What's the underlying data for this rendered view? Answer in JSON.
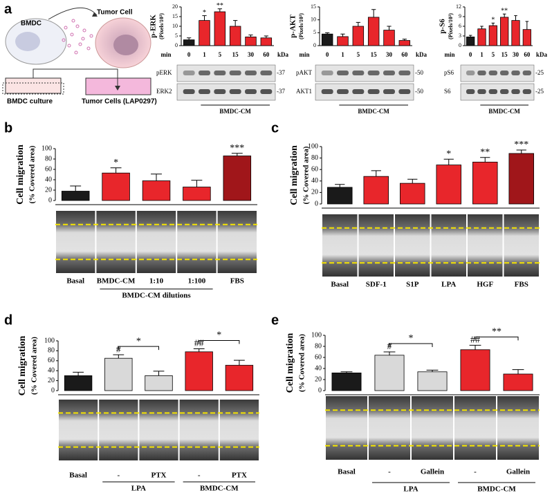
{
  "panel_labels": [
    "a",
    "b",
    "c",
    "d",
    "e"
  ],
  "diagram": {
    "bmdc": "BMDC",
    "tumor_cell": "Tumor Cell",
    "bmdc_culture": "BMDC culture",
    "tumor_cells": "Tumor Cells (LAP0297)"
  },
  "chart_data": [
    {
      "type": "bar",
      "ylabel": [
        "p-ERK",
        "(Pixels/10³)"
      ],
      "xlabel": "min",
      "unit_label": "kDa",
      "categories": [
        "0",
        "1",
        "5",
        "15",
        "30",
        "60"
      ],
      "values": [
        3,
        13,
        17.5,
        10,
        4.5,
        4
      ],
      "errors": [
        1,
        2.5,
        1.5,
        3,
        1,
        1
      ],
      "colors": [
        "#1a1a1a",
        "#e8262b",
        "#e8262b",
        "#e8262b",
        "#e8262b",
        "#e8262b"
      ],
      "value_annotations": [
        null,
        "*",
        "**",
        null,
        null,
        null
      ],
      "ylim": [
        0,
        20
      ],
      "yticks": [
        0,
        5,
        10,
        15,
        20
      ],
      "blots": [
        {
          "label": "pERK",
          "kda": "-37"
        },
        {
          "label": "ERK2",
          "kda": "-37"
        }
      ],
      "groups": [
        "BMDC-CM"
      ]
    },
    {
      "type": "bar",
      "ylabel": [
        "p-AKT",
        "(Pixels/10³)"
      ],
      "xlabel": "min",
      "unit_label": "kDa",
      "categories": [
        "0",
        "1",
        "5",
        "15",
        "30",
        "60"
      ],
      "values": [
        4.5,
        3.5,
        7.5,
        11,
        6,
        2
      ],
      "errors": [
        0.5,
        1,
        1.5,
        3,
        1.5,
        0.5
      ],
      "colors": [
        "#1a1a1a",
        "#e8262b",
        "#e8262b",
        "#e8262b",
        "#e8262b",
        "#e8262b"
      ],
      "value_annotations": [
        null,
        null,
        null,
        null,
        null,
        null
      ],
      "ylim": [
        0,
        15
      ],
      "yticks": [
        0,
        5,
        10,
        15
      ],
      "blots": [
        {
          "label": "pAKT",
          "kda": "-50"
        },
        {
          "label": "AKT1",
          "kda": "-50"
        }
      ],
      "groups": [
        "BMDC-CM"
      ]
    },
    {
      "type": "bar",
      "ylabel": [
        "p-S6",
        "(Pixels/10³)"
      ],
      "xlabel": "min",
      "unit_label": "kDa",
      "categories": [
        "0",
        "1",
        "5",
        "15",
        "30",
        "60"
      ],
      "values": [
        2.7,
        5.2,
        6.2,
        8.8,
        7.8,
        5
      ],
      "errors": [
        0.5,
        0.8,
        0.8,
        1,
        1.5,
        2.5
      ],
      "colors": [
        "#1a1a1a",
        "#e8262b",
        "#e8262b",
        "#e8262b",
        "#e8262b",
        "#e8262b"
      ],
      "value_annotations": [
        null,
        null,
        "*",
        "**",
        null,
        null
      ],
      "ylim": [
        0,
        12
      ],
      "yticks": [
        0,
        3,
        6,
        9,
        12
      ],
      "blots": [
        {
          "label": "pS6",
          "kda": "-25"
        },
        {
          "label": "S6",
          "kda": "-25"
        }
      ],
      "groups": [
        "BMDC-CM"
      ]
    },
    {
      "type": "bar",
      "ylabel": [
        "Cell migration",
        "(% Covered area)"
      ],
      "categories": [
        "Basal",
        "BMDC-CM",
        "1:10",
        "1:100",
        "FBS"
      ],
      "values": [
        18,
        53,
        38,
        26,
        86
      ],
      "errors": [
        10,
        10,
        13,
        13,
        5
      ],
      "colors": [
        "#1a1a1a",
        "#e8262b",
        "#e8262b",
        "#e8262b",
        "#a0161a"
      ],
      "value_annotations": [
        null,
        "*",
        null,
        null,
        "***"
      ],
      "ylim": [
        0,
        100
      ],
      "yticks": [
        0,
        20,
        40,
        60,
        80,
        100
      ],
      "groups": [
        "BMDC-CM dilutions"
      ]
    },
    {
      "type": "bar",
      "ylabel": [
        "Cell migration",
        "(% Covered area)"
      ],
      "categories": [
        "Basal",
        "SDF-1",
        "S1P",
        "LPA",
        "HGF",
        "FBS"
      ],
      "values": [
        29,
        48,
        36,
        68,
        73,
        88
      ],
      "errors": [
        5,
        10,
        7,
        10,
        8,
        6
      ],
      "colors": [
        "#1a1a1a",
        "#e8262b",
        "#e8262b",
        "#e8262b",
        "#e8262b",
        "#a0161a"
      ],
      "value_annotations": [
        null,
        null,
        null,
        "*",
        "**",
        "***"
      ],
      "ylim": [
        0,
        100
      ],
      "yticks": [
        0,
        20,
        40,
        60,
        80,
        100
      ]
    },
    {
      "type": "bar",
      "ylabel": [
        "Cell migration",
        "(% Covered area)"
      ],
      "categories": [
        "Basal",
        "-",
        "PTX",
        "-",
        "PTX"
      ],
      "values": [
        30,
        65,
        30,
        78,
        51
      ],
      "errors": [
        7,
        7,
        9,
        6,
        10
      ],
      "colors": [
        "#1a1a1a",
        "#d9d9d9",
        "#d9d9d9",
        "#e8262b",
        "#e8262b"
      ],
      "value_annotations": [
        null,
        "#",
        null,
        "##",
        null
      ],
      "ylim": [
        0,
        100
      ],
      "yticks": [
        0,
        20,
        40,
        60,
        80,
        100
      ],
      "brackets": [
        "*",
        "*"
      ],
      "groups": [
        "LPA",
        "BMDC-CM"
      ]
    },
    {
      "type": "bar",
      "ylabel": [
        "Cell migration",
        "(% Covered area)"
      ],
      "categories": [
        "Basal",
        "-",
        "Gallein",
        "-",
        "Gallein"
      ],
      "values": [
        32,
        64,
        34,
        74,
        30
      ],
      "errors": [
        2,
        6,
        3,
        8,
        8
      ],
      "colors": [
        "#1a1a1a",
        "#d9d9d9",
        "#d9d9d9",
        "#e8262b",
        "#e8262b"
      ],
      "value_annotations": [
        null,
        "#",
        null,
        "##",
        null
      ],
      "ylim": [
        0,
        100
      ],
      "yticks": [
        0,
        20,
        40,
        60,
        80,
        100
      ],
      "brackets": [
        "*",
        "**"
      ],
      "groups": [
        "LPA",
        "BMDC-CM"
      ]
    }
  ]
}
